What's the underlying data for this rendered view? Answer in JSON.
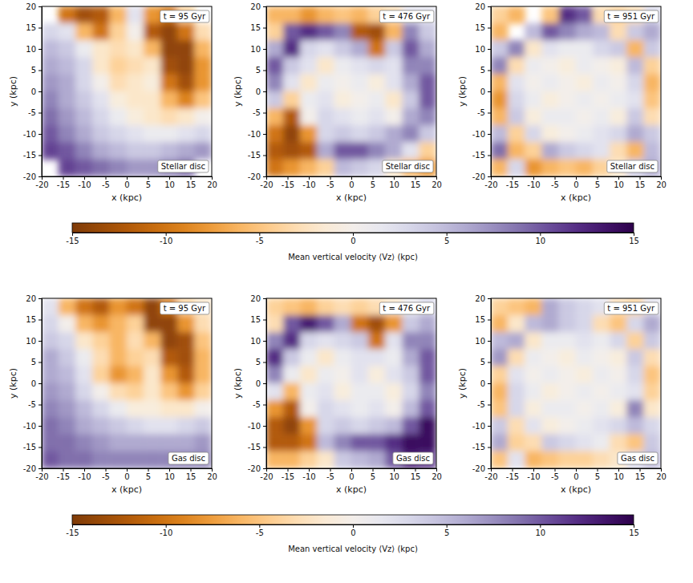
{
  "chart_data": [
    {
      "type": "heatmap",
      "title": "t = 95 Gyr",
      "annotation": "Stellar disc",
      "xlabel": "x (kpc)",
      "ylabel": "y (kpc)",
      "xlim": [
        -20,
        20
      ],
      "ylim": [
        -20,
        20
      ],
      "xticks": [
        -20,
        -15,
        -10,
        -5,
        0,
        5,
        10,
        15,
        20
      ],
      "yticks": [
        -20,
        -15,
        -10,
        -5,
        0,
        5,
        10,
        15,
        20
      ],
      "x": [
        -18,
        -14,
        -10,
        -6,
        -2,
        2,
        6,
        10,
        14,
        18
      ],
      "y": [
        18,
        14,
        10,
        6,
        2,
        -2,
        -6,
        -10,
        -14,
        -18
      ],
      "values": [
        [
          null,
          -10,
          -13,
          -12,
          -6,
          2,
          -8,
          -10,
          -4,
          null
        ],
        [
          3,
          2,
          -6,
          -10,
          -4,
          0,
          -12,
          -14,
          -10,
          -3
        ],
        [
          5,
          4,
          1,
          -2,
          -3,
          -2,
          -6,
          -14,
          -14,
          -6
        ],
        [
          6,
          5,
          3,
          -2,
          -4,
          -3,
          -2,
          -13,
          -14,
          -8
        ],
        [
          7,
          6,
          3,
          0,
          -3,
          -2,
          -1,
          -10,
          -13,
          -8
        ],
        [
          8,
          6,
          4,
          2,
          -1,
          -2,
          -2,
          -6,
          -9,
          -5
        ],
        [
          9,
          7,
          5,
          3,
          1,
          -1,
          -2,
          -3,
          -2,
          0
        ],
        [
          10,
          8,
          6,
          4,
          3,
          2,
          1,
          1,
          2,
          3
        ],
        [
          11,
          10,
          8,
          6,
          5,
          4,
          4,
          5,
          6,
          7
        ],
        [
          null,
          11,
          10,
          9,
          8,
          7,
          7,
          8,
          9,
          null
        ]
      ],
      "colorbar": {
        "label": "Mean vertical velocity ⟨Vz⟩ (kpc)",
        "range": [
          -15,
          15
        ],
        "ticks": [
          -15,
          -10,
          -5,
          0,
          5,
          10,
          15
        ]
      }
    },
    {
      "type": "heatmap",
      "title": "t = 476 Gyr",
      "annotation": "Stellar disc",
      "xlabel": "x (kpc)",
      "ylabel": "y (kpc)",
      "xlim": [
        -20,
        20
      ],
      "ylim": [
        -20,
        20
      ],
      "xticks": [
        -20,
        -15,
        -10,
        -5,
        0,
        5,
        10,
        15,
        20
      ],
      "yticks": [
        -20,
        -15,
        -10,
        -5,
        0,
        5,
        10,
        15,
        20
      ],
      "x": [
        -18,
        -14,
        -10,
        -6,
        -2,
        2,
        6,
        10,
        14,
        18
      ],
      "y": [
        18,
        14,
        10,
        6,
        2,
        -2,
        -6,
        -10,
        -14,
        -18
      ],
      "values": [
        [
          -6,
          -6,
          -8,
          -6,
          -5,
          -6,
          -4,
          -3,
          2,
          2
        ],
        [
          -4,
          10,
          12,
          10,
          8,
          -12,
          -13,
          -6,
          8,
          4
        ],
        [
          6,
          12,
          3,
          2,
          4,
          6,
          -10,
          4,
          10,
          6
        ],
        [
          10,
          4,
          2,
          -2,
          1,
          2,
          3,
          2,
          8,
          8
        ],
        [
          8,
          2,
          -2,
          1,
          0,
          1,
          -1,
          2,
          6,
          10
        ],
        [
          4,
          -4,
          1,
          2,
          -1,
          0,
          1,
          -2,
          4,
          10
        ],
        [
          -6,
          -12,
          0,
          3,
          2,
          1,
          2,
          0,
          6,
          8
        ],
        [
          -10,
          -14,
          -8,
          3,
          4,
          3,
          4,
          6,
          8,
          4
        ],
        [
          -12,
          -13,
          -12,
          6,
          10,
          10,
          8,
          6,
          2,
          -4
        ],
        [
          -10,
          -8,
          -6,
          -4,
          5,
          4,
          3,
          -2,
          -6,
          -8
        ]
      ]
    },
    {
      "type": "heatmap",
      "title": "t = 951 Gyr",
      "annotation": "Stellar disc",
      "xlabel": "x (kpc)",
      "ylabel": "y (kpc)",
      "xlim": [
        -20,
        20
      ],
      "ylim": [
        -20,
        20
      ],
      "xticks": [
        -20,
        -15,
        -10,
        -5,
        0,
        5,
        10,
        15,
        20
      ],
      "yticks": [
        -20,
        -15,
        -10,
        -5,
        0,
        5,
        10,
        15,
        20
      ],
      "x": [
        -18,
        -14,
        -10,
        -6,
        -2,
        2,
        6,
        10,
        14,
        18
      ],
      "y": [
        18,
        14,
        10,
        6,
        2,
        -2,
        -6,
        -10,
        -14,
        -18
      ],
      "values": [
        [
          -4,
          -6,
          null,
          -5,
          12,
          10,
          -3,
          -4,
          -3,
          3
        ],
        [
          -6,
          null,
          5,
          10,
          8,
          6,
          5,
          -3,
          4,
          6
        ],
        [
          4,
          8,
          -2,
          2,
          1,
          1,
          3,
          4,
          -6,
          4
        ],
        [
          8,
          -3,
          1,
          0,
          -1,
          1,
          0,
          -1,
          5,
          -4
        ],
        [
          -6,
          2,
          0,
          1,
          0,
          -1,
          1,
          0,
          3,
          -6
        ],
        [
          -8,
          3,
          1,
          -1,
          0,
          1,
          0,
          1,
          2,
          -5
        ],
        [
          -6,
          4,
          -1,
          1,
          1,
          0,
          1,
          -1,
          4,
          -3
        ],
        [
          5,
          -4,
          3,
          -1,
          0,
          1,
          2,
          3,
          6,
          4
        ],
        [
          9,
          -6,
          -4,
          6,
          4,
          3,
          2,
          -3,
          -6,
          5
        ],
        [
          -6,
          3,
          -8,
          -6,
          -5,
          -6,
          -4,
          -2,
          4,
          6
        ]
      ]
    },
    {
      "type": "heatmap",
      "title": "t = 95 Gyr",
      "annotation": "Gas disc",
      "xlabel": "x (kpc)",
      "ylabel": "y (kpc)",
      "xlim": [
        -20,
        20
      ],
      "ylim": [
        -20,
        20
      ],
      "xticks": [
        -20,
        -15,
        -10,
        -5,
        0,
        5,
        10,
        15,
        20
      ],
      "yticks": [
        -20,
        -15,
        -10,
        -5,
        0,
        5,
        10,
        15,
        20
      ],
      "x": [
        -18,
        -14,
        -10,
        -6,
        -2,
        2,
        6,
        10,
        14,
        18
      ],
      "y": [
        18,
        14,
        10,
        6,
        2,
        -2,
        -6,
        -10,
        -14,
        -18
      ],
      "values": [
        [
          2,
          -6,
          -10,
          -12,
          -8,
          -10,
          -14,
          -10,
          -4,
          -2
        ],
        [
          3,
          0,
          -6,
          -8,
          -6,
          -4,
          -14,
          -14,
          -8,
          -3
        ],
        [
          4,
          3,
          -2,
          -4,
          -6,
          -3,
          -6,
          -14,
          -13,
          -5
        ],
        [
          6,
          4,
          1,
          -3,
          -6,
          -4,
          -3,
          -12,
          -13,
          -6
        ],
        [
          6,
          5,
          2,
          -4,
          -8,
          -6,
          -2,
          -8,
          -12,
          -6
        ],
        [
          7,
          6,
          3,
          0,
          -3,
          -4,
          -2,
          -5,
          -8,
          -4
        ],
        [
          8,
          7,
          5,
          3,
          1,
          -1,
          -1,
          -2,
          -2,
          0
        ],
        [
          9,
          8,
          6,
          5,
          4,
          3,
          2,
          2,
          3,
          4
        ],
        [
          9,
          9,
          8,
          7,
          6,
          6,
          6,
          6,
          6,
          7
        ],
        [
          10,
          9,
          9,
          8,
          8,
          8,
          8,
          8,
          8,
          8
        ]
      ],
      "colorbar": {
        "label": "Mean vertical velocity ⟨Vz⟩ (kpc)",
        "range": [
          -15,
          15
        ],
        "ticks": [
          -15,
          -10,
          -5,
          0,
          5,
          10,
          15
        ]
      }
    },
    {
      "type": "heatmap",
      "title": "t = 476 Gyr",
      "annotation": "Gas disc",
      "xlabel": "x (kpc)",
      "ylabel": "y (kpc)",
      "xlim": [
        -20,
        20
      ],
      "ylim": [
        -20,
        20
      ],
      "xticks": [
        -20,
        -15,
        -10,
        -5,
        0,
        5,
        10,
        15,
        20
      ],
      "yticks": [
        -20,
        -15,
        -10,
        -5,
        0,
        5,
        10,
        15,
        20
      ],
      "x": [
        -18,
        -14,
        -10,
        -6,
        -2,
        2,
        6,
        10,
        14,
        18
      ],
      "y": [
        18,
        14,
        10,
        6,
        2,
        -2,
        -6,
        -10,
        -14,
        -18
      ],
      "values": [
        [
          -4,
          -5,
          -6,
          -4,
          -3,
          -4,
          -3,
          -2,
          1,
          3
        ],
        [
          -3,
          10,
          13,
          10,
          6,
          -10,
          -13,
          -8,
          4,
          6
        ],
        [
          8,
          12,
          3,
          2,
          3,
          4,
          -10,
          2,
          8,
          8
        ],
        [
          12,
          4,
          1,
          -2,
          1,
          2,
          2,
          1,
          6,
          10
        ],
        [
          8,
          1,
          -2,
          1,
          0,
          2,
          -1,
          2,
          4,
          10
        ],
        [
          2,
          -6,
          1,
          2,
          -1,
          1,
          1,
          -1,
          3,
          8
        ],
        [
          -8,
          -12,
          0,
          3,
          2,
          1,
          2,
          0,
          5,
          10
        ],
        [
          -12,
          -14,
          -8,
          3,
          4,
          3,
          4,
          5,
          10,
          14
        ],
        [
          -12,
          -12,
          -10,
          5,
          8,
          10,
          10,
          12,
          14,
          14
        ],
        [
          -6,
          -6,
          -4,
          -2,
          4,
          5,
          6,
          10,
          13,
          12
        ]
      ]
    },
    {
      "type": "heatmap",
      "title": "t = 951 Gyr",
      "annotation": "Gas disc",
      "xlabel": "x (kpc)",
      "ylabel": "y (kpc)",
      "xlim": [
        -20,
        20
      ],
      "ylim": [
        -20,
        20
      ],
      "xticks": [
        -20,
        -15,
        -10,
        -5,
        0,
        5,
        10,
        15,
        20
      ],
      "yticks": [
        -20,
        -15,
        -10,
        -5,
        0,
        5,
        10,
        15,
        20
      ],
      "x": [
        -18,
        -14,
        -10,
        -6,
        -2,
        2,
        6,
        10,
        14,
        18
      ],
      "y": [
        18,
        14,
        10,
        6,
        2,
        -2,
        -6,
        -10,
        -14,
        -18
      ],
      "values": [
        [
          -4,
          -5,
          -6,
          6,
          4,
          3,
          2,
          -3,
          -4,
          2
        ],
        [
          -6,
          -2,
          5,
          6,
          4,
          3,
          -3,
          -5,
          3,
          6
        ],
        [
          5,
          6,
          -2,
          1,
          1,
          2,
          1,
          3,
          -4,
          4
        ],
        [
          7,
          -3,
          1,
          0,
          -1,
          1,
          0,
          -1,
          4,
          -3
        ],
        [
          -4,
          2,
          0,
          1,
          0,
          -1,
          1,
          0,
          3,
          -5
        ],
        [
          -6,
          3,
          1,
          -1,
          0,
          1,
          0,
          1,
          2,
          -4
        ],
        [
          -5,
          3,
          -1,
          1,
          1,
          0,
          1,
          -1,
          8,
          -2
        ],
        [
          4,
          -3,
          2,
          -1,
          0,
          1,
          2,
          3,
          5,
          3
        ],
        [
          6,
          -4,
          -3,
          4,
          3,
          2,
          1,
          -3,
          -5,
          4
        ],
        [
          -5,
          2,
          -6,
          -5,
          -4,
          -4,
          -3,
          -2,
          3,
          5
        ]
      ]
    }
  ]
}
